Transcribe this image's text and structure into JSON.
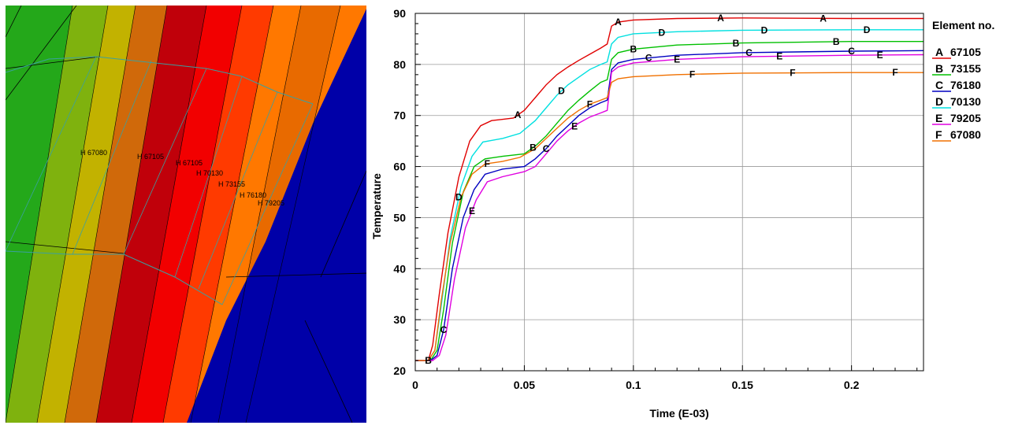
{
  "contour_view": {
    "colors": {
      "green": "#24a81a",
      "yellow_green": "#7fb20e",
      "olive": "#c2b200",
      "orange_brown": "#d0690a",
      "dark_red": "#c0000a",
      "red": "#f20000",
      "orange_red": "#ff3a00",
      "orange": "#ff7800",
      "dark_orange": "#e86a00",
      "blue": "#0000a8",
      "mesh_line": "#000000",
      "highlight_line": "#3aa0a0"
    },
    "node_labels": [
      "H 67080",
      "H 67105",
      "H 67105",
      "H 70130",
      "H 73155",
      "H 76180",
      "H 79205"
    ]
  },
  "chart_data": {
    "type": "line",
    "title": "",
    "xlabel": "Time (E-03)",
    "ylabel": "Temperature",
    "xlim": [
      0,
      0.233
    ],
    "ylim": [
      20,
      90
    ],
    "x_ticks": [
      0,
      0.05,
      0.1,
      0.15,
      0.2
    ],
    "x_tick_labels": [
      "0",
      "0.05",
      "0.1",
      "0.15",
      "0.2"
    ],
    "y_ticks": [
      20,
      30,
      40,
      50,
      60,
      70,
      80,
      90
    ],
    "y_tick_labels": [
      "20",
      "30",
      "40",
      "50",
      "60",
      "70",
      "80",
      "90"
    ],
    "grid": true,
    "legend_title": "Element no.",
    "legend_position": "right",
    "series": [
      {
        "letter": "A",
        "name": "67105",
        "color": "#e00000",
        "x": [
          0,
          0.006,
          0.008,
          0.011,
          0.015,
          0.02,
          0.025,
          0.03,
          0.035,
          0.045,
          0.05,
          0.055,
          0.06,
          0.065,
          0.07,
          0.075,
          0.08,
          0.085,
          0.088,
          0.09,
          0.093,
          0.1,
          0.12,
          0.15,
          0.2,
          0.233
        ],
        "y": [
          22,
          22,
          25,
          35,
          47,
          58,
          65,
          68,
          69,
          69.5,
          71,
          73.5,
          76,
          78,
          79.5,
          80.8,
          82,
          83.2,
          84,
          87.5,
          88.3,
          88.7,
          89,
          89.1,
          89,
          89
        ]
      },
      {
        "letter": "B",
        "name": "73155",
        "color": "#00c000",
        "x": [
          0,
          0.007,
          0.01,
          0.013,
          0.017,
          0.022,
          0.027,
          0.032,
          0.04,
          0.05,
          0.055,
          0.06,
          0.065,
          0.07,
          0.075,
          0.08,
          0.085,
          0.088,
          0.09,
          0.093,
          0.1,
          0.12,
          0.15,
          0.2,
          0.233
        ],
        "y": [
          22,
          22,
          24,
          32,
          45,
          55,
          60,
          61.5,
          62,
          62.5,
          64,
          66,
          68.5,
          71,
          73,
          74.8,
          76.5,
          77,
          81,
          82.3,
          83,
          83.8,
          84.2,
          84.5,
          84.5
        ]
      },
      {
        "letter": "C",
        "name": "76180",
        "color": "#0000c0",
        "x": [
          0,
          0.007,
          0.01,
          0.013,
          0.017,
          0.022,
          0.027,
          0.032,
          0.04,
          0.05,
          0.055,
          0.06,
          0.065,
          0.07,
          0.075,
          0.08,
          0.085,
          0.088,
          0.09,
          0.093,
          0.1,
          0.12,
          0.15,
          0.2,
          0.233
        ],
        "y": [
          22,
          22,
          23,
          28,
          40,
          50,
          55.5,
          58.5,
          59.5,
          60,
          61.5,
          63.5,
          66,
          68,
          70,
          71.5,
          72.5,
          73,
          79,
          80.3,
          81,
          81.8,
          82.3,
          82.6,
          82.7
        ]
      },
      {
        "letter": "D",
        "name": "70130",
        "color": "#00e0e0",
        "x": [
          0,
          0.006,
          0.009,
          0.012,
          0.016,
          0.021,
          0.026,
          0.031,
          0.04,
          0.048,
          0.055,
          0.06,
          0.065,
          0.07,
          0.075,
          0.08,
          0.085,
          0.088,
          0.09,
          0.093,
          0.1,
          0.12,
          0.15,
          0.2,
          0.233
        ],
        "y": [
          22,
          22,
          24,
          33,
          46,
          56,
          62,
          64.8,
          65.5,
          66.5,
          69,
          71.5,
          74,
          76,
          77.5,
          79,
          80,
          80.5,
          84,
          85.3,
          86,
          86.4,
          86.7,
          86.8,
          86.8
        ]
      },
      {
        "letter": "E",
        "name": "79205",
        "color": "#e000e0",
        "x": [
          0,
          0.008,
          0.011,
          0.014,
          0.018,
          0.023,
          0.028,
          0.033,
          0.04,
          0.05,
          0.055,
          0.06,
          0.065,
          0.07,
          0.075,
          0.08,
          0.085,
          0.088,
          0.09,
          0.093,
          0.1,
          0.12,
          0.15,
          0.2,
          0.233
        ],
        "y": [
          22,
          22,
          23,
          27,
          38,
          48,
          53.5,
          57,
          58,
          59,
          60,
          62.5,
          65,
          67,
          68.5,
          69.7,
          70.5,
          71,
          78.5,
          79.5,
          80.3,
          81,
          81.5,
          81.8,
          81.9
        ]
      },
      {
        "letter": "F",
        "name": "67080",
        "color": "#f07000",
        "x": [
          0,
          0.006,
          0.009,
          0.012,
          0.016,
          0.021,
          0.026,
          0.032,
          0.04,
          0.048,
          0.055,
          0.06,
          0.065,
          0.07,
          0.075,
          0.08,
          0.085,
          0.088,
          0.09,
          0.093,
          0.1,
          0.12,
          0.15,
          0.2,
          0.233
        ],
        "y": [
          22,
          22,
          24,
          34,
          45,
          54,
          58.5,
          60.5,
          61,
          61.8,
          63.5,
          65.5,
          67.5,
          69.5,
          71,
          72.2,
          73,
          73.5,
          76.5,
          77.2,
          77.6,
          78,
          78.3,
          78.4,
          78.4
        ]
      }
    ],
    "marker_positions": {
      "A": [
        0.047,
        0.093,
        0.14,
        0.187
      ],
      "B": [
        0.006,
        0.054,
        0.1,
        0.147,
        0.193
      ],
      "C": [
        0.013,
        0.06,
        0.107,
        0.153,
        0.2
      ],
      "D": [
        0.02,
        0.067,
        0.113,
        0.16,
        0.207
      ],
      "E": [
        0.026,
        0.073,
        0.12,
        0.167,
        0.213
      ],
      "F": [
        0.033,
        0.08,
        0.127,
        0.173,
        0.22
      ]
    }
  }
}
